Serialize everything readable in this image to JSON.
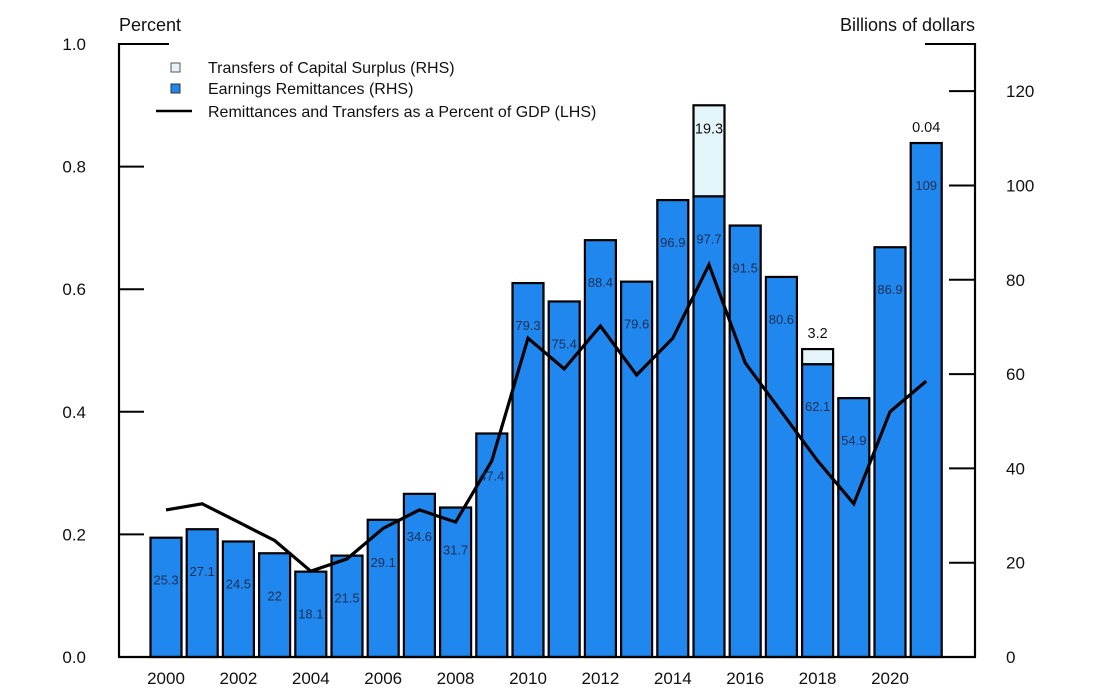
{
  "chart_data": {
    "type": "bar",
    "subtype": "stacked bar with line overlay, dual axis",
    "title": "",
    "categories": [
      "2000",
      "2001",
      "2002",
      "2003",
      "2004",
      "2005",
      "2006",
      "2007",
      "2008",
      "2009",
      "2010",
      "2011",
      "2012",
      "2013",
      "2014",
      "2015",
      "2016",
      "2017",
      "2018",
      "2019",
      "2020",
      "2021"
    ],
    "series": [
      {
        "name": "Earnings Remittances (RHS)",
        "type": "bar",
        "axis": "right",
        "color": "#1f87ee",
        "values": [
          25.3,
          27.1,
          24.5,
          22,
          18.1,
          21.5,
          29.1,
          34.6,
          31.7,
          47.4,
          79.3,
          75.4,
          88.4,
          79.6,
          96.9,
          97.7,
          91.5,
          80.6,
          62.1,
          54.9,
          86.9,
          109
        ],
        "labels": [
          "25.3",
          "27.1",
          "24.5",
          "22",
          "18.1",
          "21.5",
          "29.1",
          "34.6",
          "31.7",
          "47.4",
          "79.3",
          "75.4",
          "88.4",
          "79.6",
          "96.9",
          "97.7",
          "91.5",
          "80.6",
          "62.1",
          "54.9",
          "86.9",
          "109"
        ]
      },
      {
        "name": "Transfers of Capital Surplus (RHS)",
        "type": "bar",
        "axis": "right",
        "stacked_on": "Earnings Remittances (RHS)",
        "color": "#e4f5f9",
        "values": [
          0,
          0,
          0,
          0,
          0,
          0,
          0,
          0,
          0,
          0,
          0,
          0,
          0,
          0,
          0,
          19.3,
          0,
          0,
          3.2,
          0,
          0,
          0.04
        ],
        "labels": [
          "",
          "",
          "",
          "",
          "",
          "",
          "",
          "",
          "",
          "",
          "",
          "",
          "",
          "",
          "",
          "19.3",
          "",
          "",
          "3.2",
          "",
          "",
          "0.04"
        ]
      },
      {
        "name": "Remittances and Transfers as a Percent of GDP (LHS)",
        "type": "line",
        "axis": "left",
        "color": "#000000",
        "values": [
          0.24,
          0.25,
          0.22,
          0.19,
          0.14,
          0.16,
          0.21,
          0.24,
          0.22,
          0.32,
          0.52,
          0.47,
          0.54,
          0.46,
          0.52,
          0.64,
          0.48,
          0.4,
          0.32,
          0.25,
          0.4,
          0.45
        ]
      }
    ],
    "left_axis": {
      "label": "Percent",
      "ylim": [
        0,
        1.0
      ],
      "ticks": [
        0.0,
        0.2,
        0.4,
        0.6,
        0.8,
        1.0
      ],
      "tick_labels": [
        "0.0",
        "0.2",
        "0.4",
        "0.6",
        "0.8",
        "1.0"
      ]
    },
    "right_axis": {
      "label": "Billions of dollars",
      "ylim": [
        0,
        130
      ],
      "ticks": [
        0,
        20,
        40,
        60,
        80,
        100,
        120
      ],
      "tick_labels": [
        "0",
        "20",
        "40",
        "60",
        "80",
        "100",
        "120"
      ]
    },
    "x_axis": {
      "label": "",
      "tick_labels": [
        "2000",
        "2002",
        "2004",
        "2006",
        "2008",
        "2010",
        "2012",
        "2014",
        "2016",
        "2018",
        "2020"
      ]
    },
    "legend": {
      "placement": "top-left",
      "entries": [
        {
          "label": "Transfers of Capital Surplus (RHS)",
          "symbol": "square",
          "color": "#e4f5f9"
        },
        {
          "label": "Earnings Remittances (RHS)",
          "symbol": "square",
          "color": "#1f87ee"
        },
        {
          "label": "Remittances and Transfers as a Percent of GDP (LHS)",
          "symbol": "line",
          "color": "#000000"
        }
      ]
    },
    "grid": false
  }
}
